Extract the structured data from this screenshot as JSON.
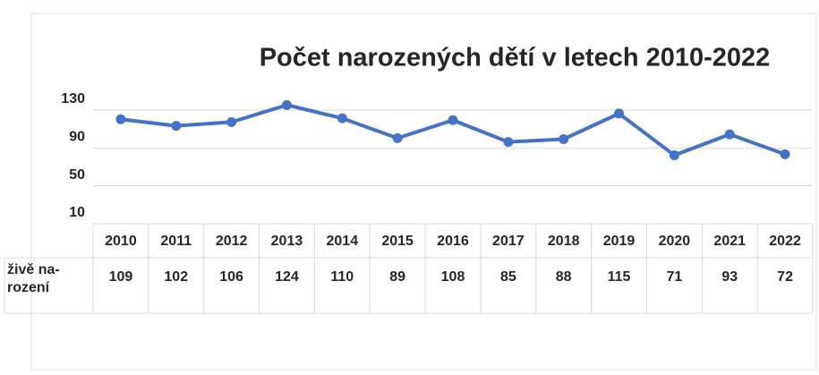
{
  "chart_data": {
    "type": "line",
    "title": "Počet narozených dětí v letech 2010-2022",
    "categories": [
      "2010",
      "2011",
      "2012",
      "2013",
      "2014",
      "2015",
      "2016",
      "2017",
      "2018",
      "2019",
      "2020",
      "2021",
      "2022"
    ],
    "series": [
      {
        "name": "živě na-rození",
        "color": "#4472c4",
        "values": [
          109,
          102,
          106,
          124,
          110,
          89,
          108,
          85,
          88,
          115,
          71,
          93,
          72
        ]
      }
    ],
    "ylim": [
      10,
      130
    ],
    "yticks": [
      10,
      50,
      90,
      130
    ],
    "grid": true,
    "data_table": true
  }
}
